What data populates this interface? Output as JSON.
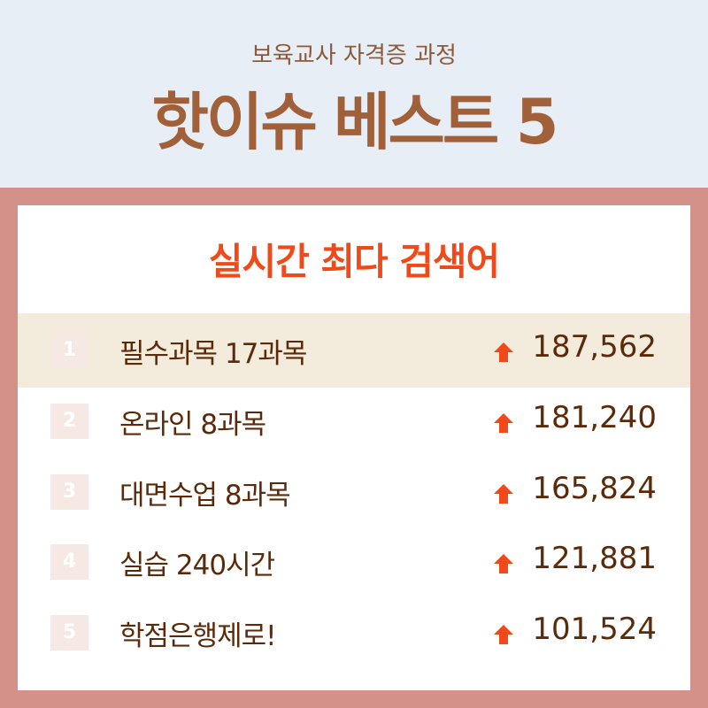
{
  "header": {
    "subtitle": "보육교사 자격증 과정",
    "title": "핫이슈 베스트 5"
  },
  "card": {
    "title": "실시간 최다 검색어"
  },
  "colors": {
    "accent": "#f04a1a",
    "text": "#5a2a0a",
    "highlight": "#f3ebdb",
    "frame": "#d4918a"
  },
  "ranks": [
    {
      "rank": "1",
      "label": "필수과목 17과목",
      "count": "187,562",
      "icon": "arrow-up-icon"
    },
    {
      "rank": "2",
      "label": "온라인 8과목",
      "count": "181,240",
      "icon": "arrow-up-icon"
    },
    {
      "rank": "3",
      "label": "대면수업 8과목",
      "count": "165,824",
      "icon": "arrow-up-icon"
    },
    {
      "rank": "4",
      "label": "실습 240시간",
      "count": "121,881",
      "icon": "arrow-up-icon"
    },
    {
      "rank": "5",
      "label": "학점은행제로!",
      "count": "101,524",
      "icon": "arrow-up-icon"
    }
  ]
}
